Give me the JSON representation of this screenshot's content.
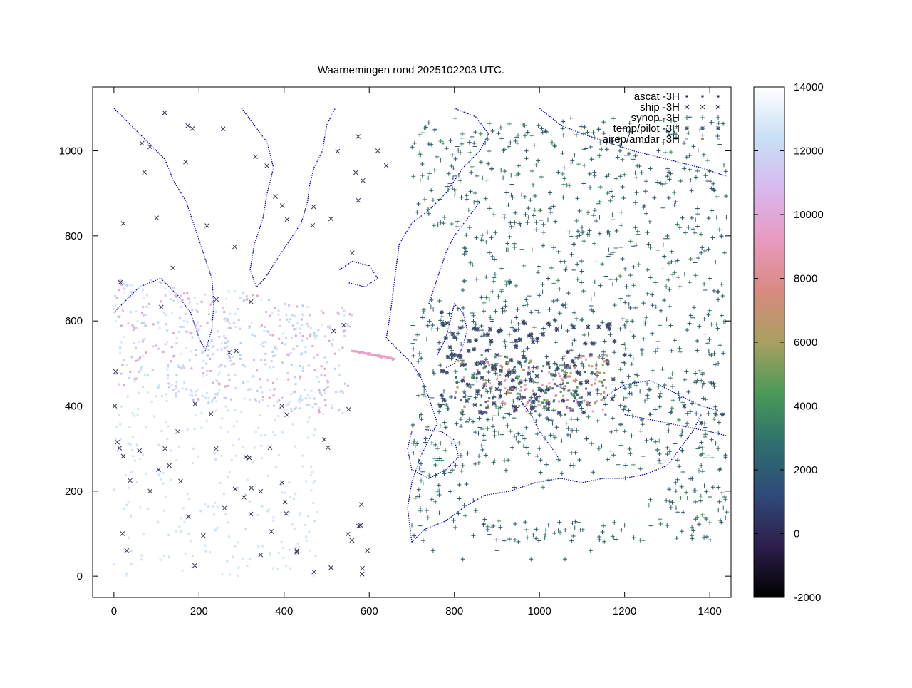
{
  "chart_data": {
    "type": "scatter",
    "title": "Waarnemingen rond 2025102203 UTC.",
    "xlabel": "",
    "ylabel": "",
    "xlim": [
      -50,
      1450
    ],
    "ylim": [
      -50,
      1150
    ],
    "xticks": [
      "0",
      "200",
      "400",
      "600",
      "800",
      "1000",
      "1200",
      "1400"
    ],
    "xtick_values": [
      0,
      200,
      400,
      600,
      800,
      1000,
      1200,
      1400
    ],
    "yticks": [
      "0",
      "200",
      "400",
      "600",
      "800",
      "1000"
    ],
    "ytick_values": [
      0,
      200,
      400,
      600,
      800,
      1000
    ],
    "grid": false,
    "legend_position": "top-right",
    "colorbar": {
      "ticks": [
        "14000",
        "12000",
        "10000",
        "8000",
        "6000",
        "4000",
        "2000",
        "0",
        "-2000"
      ],
      "values": [
        14000,
        12000,
        10000,
        8000,
        6000,
        4000,
        2000,
        0,
        -2000
      ],
      "range": [
        -2000,
        14000
      ],
      "stops": [
        "#000000",
        "#2d1e4a",
        "#2f4a7a",
        "#2e6e6e",
        "#4a9a58",
        "#a8a060",
        "#d88a80",
        "#e89ac0",
        "#d8b8ef",
        "#c8e0f5",
        "#ffffff"
      ]
    },
    "coastline_color": "#0000c0",
    "series": [
      {
        "name": "ascat -3H",
        "marker": "dot",
        "color": "#6a8ec8"
      },
      {
        "name": "ship -3H",
        "marker": "x",
        "color": "#333355"
      },
      {
        "name": "synop -3H",
        "marker": "+",
        "color": "#2e5f6a"
      },
      {
        "name": "temp/pilot -3H",
        "marker": "star",
        "color": "#3a4a70"
      },
      {
        "name": "airep/amdar -3H",
        "marker": "square",
        "color": "#b8b8e8"
      }
    ],
    "sample_points": {
      "ship": [
        [
          2,
          400
        ],
        [
          8,
          315
        ],
        [
          20,
          100
        ],
        [
          30,
          60
        ],
        [
          38,
          225
        ],
        [
          60,
          295
        ],
        [
          85,
          200
        ],
        [
          105,
          250
        ],
        [
          120,
          300
        ],
        [
          130,
          260
        ],
        [
          150,
          340
        ],
        [
          175,
          140
        ],
        [
          190,
          25
        ],
        [
          210,
          95
        ],
        [
          240,
          300
        ],
        [
          260,
          160
        ],
        [
          285,
          205
        ],
        [
          310,
          280
        ],
        [
          345,
          50
        ],
        [
          370,
          105
        ],
        [
          395,
          220
        ],
        [
          430,
          60
        ],
        [
          470,
          10
        ],
        [
          510,
          20
        ],
        [
          540,
          590
        ],
        [
          560,
          760
        ],
        [
          585,
          930
        ],
        [
          620,
          1000
        ],
        [
          640,
          965
        ]
      ],
      "synop": [
        [
          760,
          300
        ],
        [
          780,
          350
        ],
        [
          820,
          380
        ],
        [
          850,
          420
        ],
        [
          880,
          460
        ],
        [
          900,
          500
        ],
        [
          920,
          540
        ],
        [
          950,
          580
        ],
        [
          980,
          620
        ],
        [
          1000,
          660
        ],
        [
          1020,
          700
        ],
        [
          1050,
          740
        ],
        [
          1080,
          780
        ],
        [
          1100,
          820
        ],
        [
          1130,
          860
        ],
        [
          1160,
          900
        ],
        [
          1190,
          940
        ],
        [
          1220,
          980
        ],
        [
          1250,
          1020
        ],
        [
          1280,
          1000
        ],
        [
          1300,
          940
        ],
        [
          1320,
          880
        ],
        [
          1350,
          820
        ],
        [
          1380,
          760
        ],
        [
          1400,
          700
        ],
        [
          1420,
          650
        ],
        [
          1100,
          500
        ],
        [
          1150,
          520
        ],
        [
          1200,
          500
        ],
        [
          1050,
          450
        ],
        [
          980,
          420
        ],
        [
          930,
          380
        ],
        [
          870,
          320
        ],
        [
          820,
          260
        ],
        [
          760,
          200
        ],
        [
          720,
          160
        ],
        [
          700,
          120
        ],
        [
          750,
          60
        ],
        [
          820,
          40
        ],
        [
          900,
          60
        ],
        [
          980,
          40
        ],
        [
          1060,
          40
        ],
        [
          1120,
          60
        ],
        [
          1200,
          120
        ],
        [
          1260,
          180
        ],
        [
          1320,
          220
        ],
        [
          1380,
          260
        ],
        [
          1420,
          300
        ],
        [
          1000,
          300
        ],
        [
          1080,
          260
        ],
        [
          1140,
          300
        ],
        [
          1200,
          340
        ],
        [
          1260,
          380
        ],
        [
          1330,
          420
        ],
        [
          1380,
          460
        ],
        [
          1420,
          500
        ]
      ],
      "temp": [
        [
          770,
          620
        ],
        [
          780,
          560
        ],
        [
          800,
          520
        ],
        [
          860,
          500
        ],
        [
          900,
          520
        ],
        [
          940,
          480
        ],
        [
          980,
          460
        ],
        [
          1020,
          500
        ],
        [
          1060,
          470
        ],
        [
          1120,
          520
        ],
        [
          1160,
          500
        ],
        [
          1200,
          520
        ],
        [
          1340,
          400
        ],
        [
          1380,
          360
        ],
        [
          1430,
          380
        ],
        [
          900,
          440
        ],
        [
          960,
          420
        ],
        [
          1000,
          440
        ]
      ]
    }
  }
}
